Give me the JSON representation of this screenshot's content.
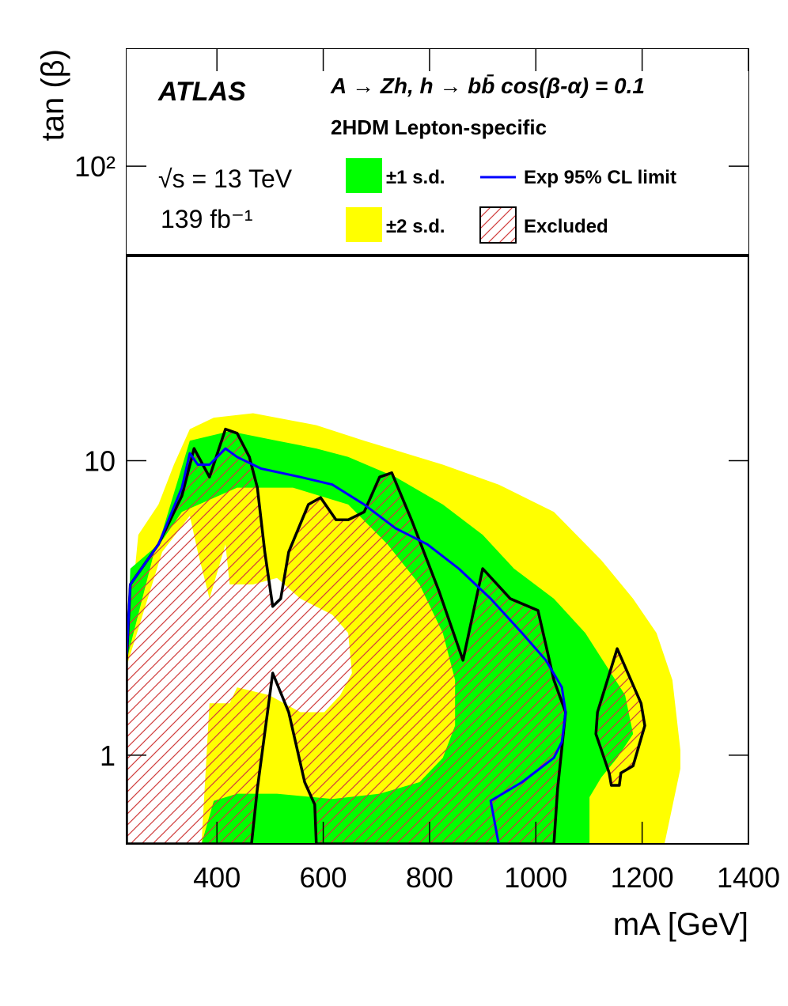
{
  "chart_data": {
    "type": "contour",
    "annotations": [
      "ATLAS",
      "A → Zh, h → bb̄  cos(β-α) = 0.1",
      "2HDM Lepton-specific",
      "√s = 13 TeV",
      "139 fb⁻¹"
    ],
    "x_label": "mA [GeV]",
    "y_label": "tan (β)",
    "xlim": [
      230,
      1400
    ],
    "xticks": [
      400,
      600,
      800,
      1000,
      1200,
      1400
    ],
    "ylim": [
      0.5,
      250
    ],
    "log_y": true,
    "yticks": [
      1,
      10,
      {
        "value": 100,
        "label": "10²"
      }
    ],
    "series": [
      {
        "name": "±2 s.d.",
        "color": "#ffff00",
        "kind": "band",
        "polygons": [
          {
            "x": [
              230,
              252,
              290,
              319,
              349,
              394,
              468,
              587,
              677,
              825,
              930,
              1034,
              1123,
              1183,
              1227,
              1257,
              1272,
              1272,
              1242,
              230
            ],
            "values": [
              2.2,
              5.6,
              7.1,
              9.7,
              12.8,
              14.0,
              14.5,
              13.2,
              11.7,
              9.7,
              8.3,
              6.7,
              4.6,
              3.4,
              2.6,
              1.8,
              1.04,
              0.9,
              0.5,
              0.5
            ]
          },
          {
            "x": [
              230,
              297,
              349,
              364,
              386,
              416,
              424,
              468,
              513,
              557,
              617,
              647,
              654,
              632,
              602,
              557,
              498,
              438,
              424,
              386,
              371,
              230
            ],
            "values": [
              2.0,
              4.9,
              6.5,
              4.9,
              3.4,
              5.2,
              3.8,
              3.8,
              4.0,
              3.4,
              3.0,
              2.6,
              1.9,
              1.6,
              1.4,
              1.4,
              1.6,
              1.7,
              1.5,
              1.5,
              0.5,
              0.5
            ]
          }
        ]
      },
      {
        "name": "±1 s.d.",
        "color": "#00ff00",
        "kind": "band",
        "polygons": [
          {
            "x": [
              230,
              237,
              290,
              349,
              424,
              513,
              587,
              647,
              736,
              825,
              900,
              959,
              1034,
              1093,
              1168,
              1183,
              1153,
              1123,
              1101,
              1101,
              230
            ],
            "values": [
              2.1,
              4.3,
              5.2,
              11.7,
              12.6,
              11.7,
              11.0,
              10.3,
              8.8,
              7.1,
              5.6,
              4.3,
              3.4,
              2.6,
              1.6,
              1.18,
              0.98,
              0.84,
              0.72,
              0.5,
              0.5
            ]
          },
          {
            "x": [
              230,
              282,
              334,
              438,
              543,
              647,
              721,
              781,
              825,
              848,
              848,
              825,
              781,
              706,
              617,
              513,
              438,
              394,
              371,
              230
            ],
            "values": [
              2.1,
              4.9,
              6.7,
              8.1,
              8.1,
              7.1,
              5.2,
              3.8,
              2.6,
              1.8,
              1.26,
              0.98,
              0.81,
              0.74,
              0.71,
              0.74,
              0.74,
              0.7,
              0.5,
              0.5
            ]
          }
        ]
      },
      {
        "name": "Exp 95% CL limit",
        "color": "#0000ff",
        "kind": "line",
        "x": [
          230,
          237,
          290,
          334,
          349,
          364,
          386,
          416,
          438,
          483,
          557,
          617,
          677,
          736,
          796,
          855,
          915,
          974,
          1019,
          1049,
          1056,
          1049,
          1034,
          974,
          915,
          930
        ],
        "values": [
          2.2,
          3.8,
          5.2,
          8.1,
          10.6,
          9.7,
          9.7,
          11.0,
          10.3,
          9.4,
          8.8,
          8.3,
          7.1,
          5.9,
          5.2,
          4.3,
          3.4,
          2.6,
          2.1,
          1.7,
          1.4,
          1.11,
          0.98,
          0.81,
          0.7,
          0.5
        ]
      },
      {
        "name": "Excluded",
        "color": "#000000",
        "hatch_color": "#d03c3c",
        "kind": "region",
        "polygons": [
          {
            "x": [
              230,
              237,
              290,
              334,
              357,
              386,
              416,
              438,
              461,
              476,
              490,
              505,
              520,
              535,
              572,
              595,
              624,
              647,
              677,
              706,
              729,
              766,
              818,
              863,
              900,
              952,
              1004,
              1034,
              1056,
              1041,
              1034,
              587,
              584,
              565,
              535,
              505,
              476,
              465,
              230
            ],
            "values": [
              2.1,
              3.8,
              5.2,
              7.6,
              11.0,
              8.8,
              12.8,
              12.4,
              10.3,
              8.1,
              4.9,
              3.2,
              3.4,
              4.9,
              7.1,
              7.5,
              6.3,
              6.3,
              6.7,
              8.8,
              9.1,
              6.3,
              3.6,
              2.1,
              4.3,
              3.4,
              3.1,
              1.8,
              1.4,
              0.77,
              0.5,
              0.5,
              0.68,
              0.81,
              1.4,
              1.9,
              0.77,
              0.5,
              0.5
            ]
          },
          {
            "x": [
              1116,
              1153,
              1198,
              1205,
              1183,
              1160,
              1157,
              1142,
              1138,
              1113
            ],
            "values": [
              1.4,
              2.3,
              1.5,
              1.26,
              0.92,
              0.87,
              0.79,
              0.79,
              0.87,
              1.18
            ]
          }
        ]
      }
    ]
  }
}
